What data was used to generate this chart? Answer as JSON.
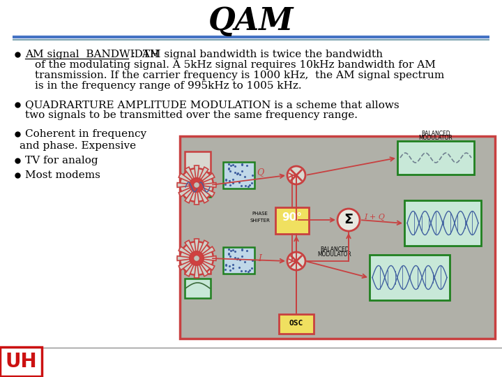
{
  "title": "QAM",
  "bg": "#ffffff",
  "title_fontsize": 32,
  "sep_color1": "#4472c4",
  "sep_color2": "#6090a0",
  "text_fs": 11,
  "bullet_underline": "AM signal  BANDWIDTH",
  "bullet1_line1": " :  AM signal bandwidth is twice the bandwidth",
  "bullet1_line2": "of the modulating signal. A 5kHz signal requires 10kHz bandwidth for AM",
  "bullet1_line3": "transmission. If the carrier frequency is 1000 kHz,  the AM signal spectrum",
  "bullet1_line4": "is in the frequency range of 995kHz to 1005 kHz.",
  "bullet2_line1": "QUADRARTURE AMPLITUDE MODULATION is a scheme that allows",
  "bullet2_line2": "two signals to be transmitted over the same frequency range.",
  "bullet3": "Coherent in frequency",
  "andphase": "and phase. Expensive",
  "bullet4": "TV for analog",
  "bullet5": "Most modems",
  "diag_bg": "#b0b0a8",
  "diag_border": "#c84040",
  "green_box_face": "#c8e8d8",
  "green_box_edge": "#208020",
  "blue_box_face": "#c0d8e8",
  "blue_box_edge": "#208020",
  "red_line": "#c84040",
  "osc_face": "#f0e060",
  "phase_face": "#f0e060",
  "uh_color": "#cc1111"
}
